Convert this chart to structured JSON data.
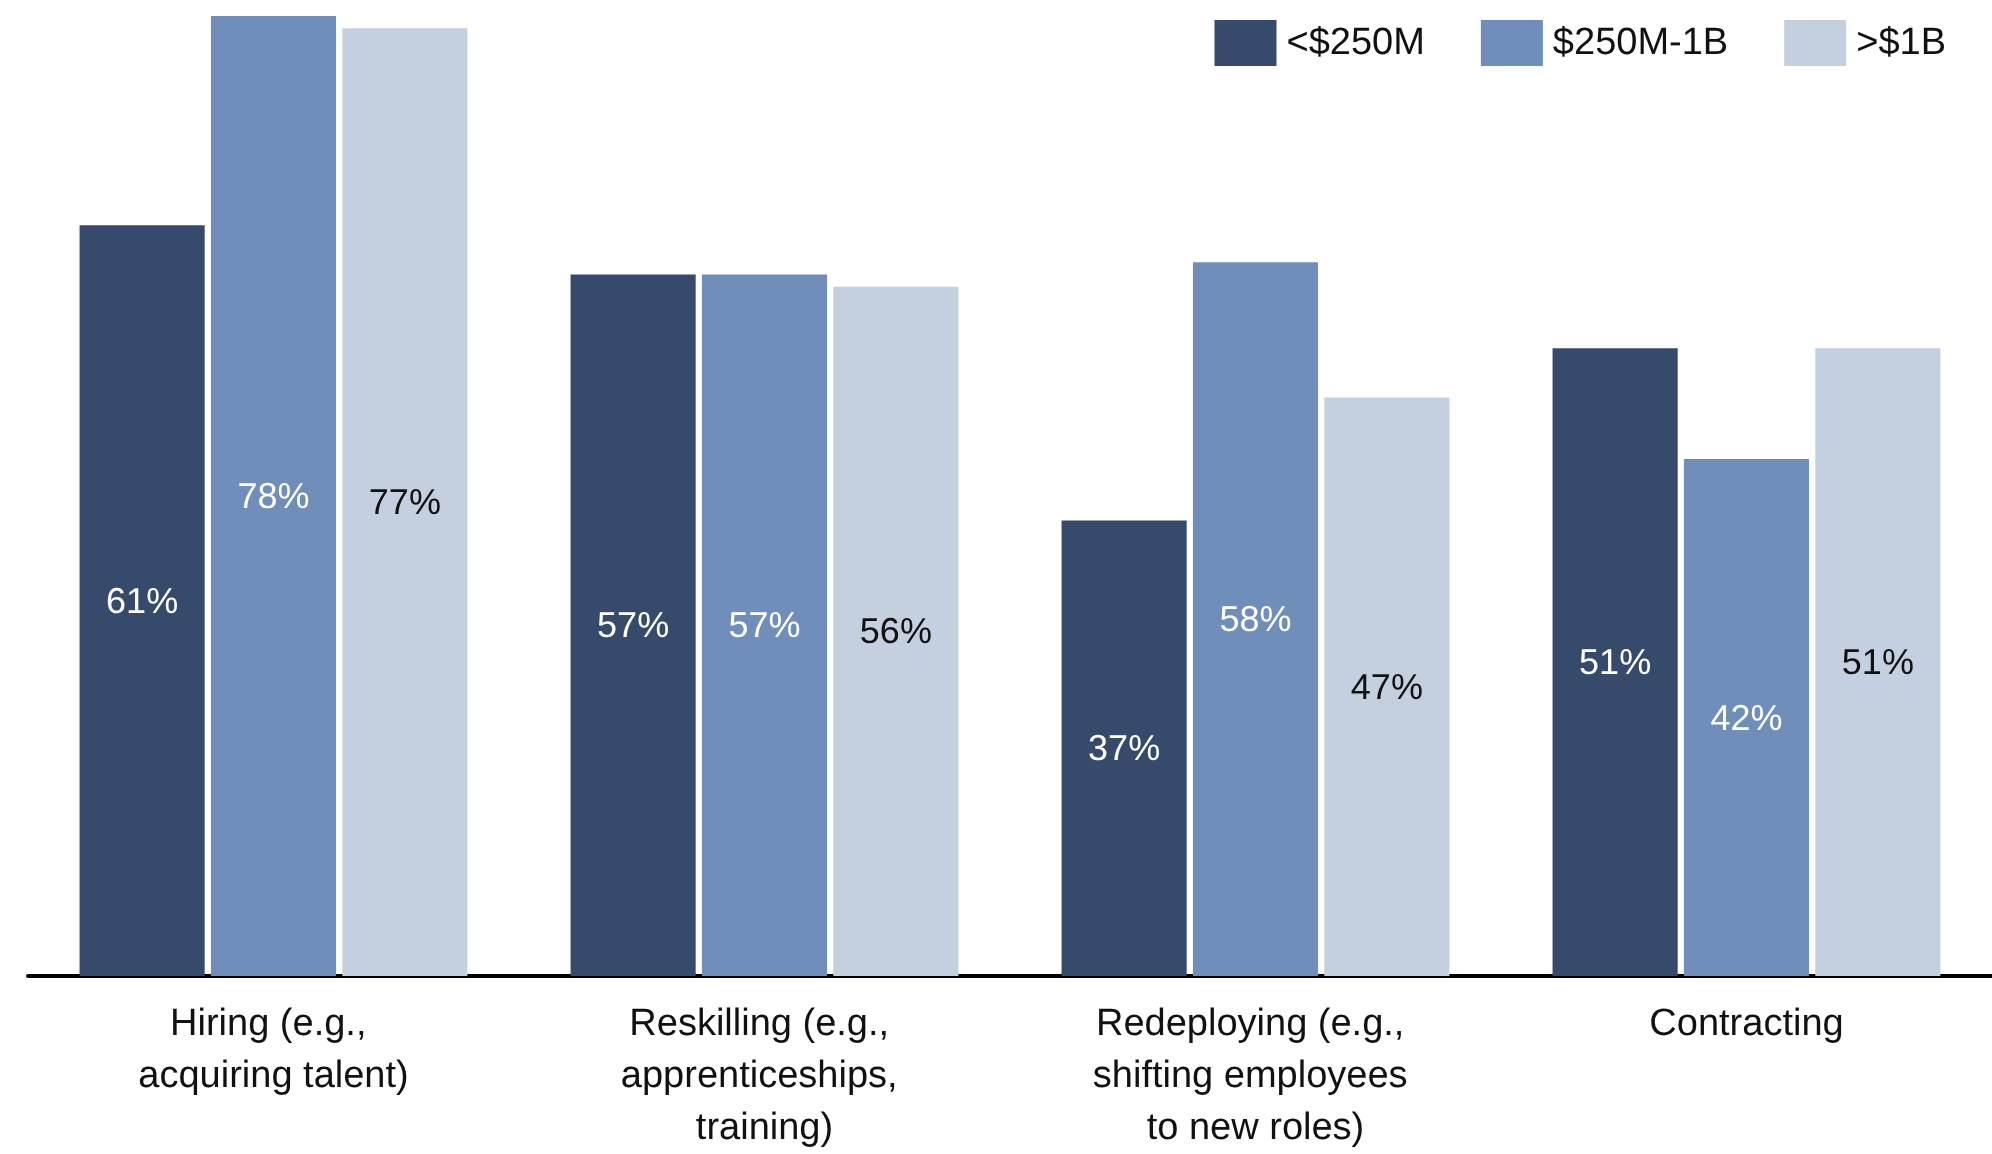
{
  "chart_data": {
    "type": "bar",
    "categories": [
      "Hiring (e.g., acquiring talent)",
      "Reskilling (e.g., apprenticeships, training)",
      "Redeploying (e.g., shifting employees to new roles)",
      "Contracting"
    ],
    "series": [
      {
        "name": "<$250M",
        "color": "#364b6c",
        "values": [
          61,
          57,
          37,
          51
        ],
        "value_labels": [
          "61%",
          "57%",
          "37%",
          "51%"
        ]
      },
      {
        "name": "$250M-1B",
        "color": "#6f8eb9",
        "values": [
          78,
          57,
          58,
          42
        ],
        "value_labels": [
          "78%",
          "57%",
          "58%",
          "42%"
        ]
      },
      {
        "name": ">$1B",
        "color": "#c4cfe0",
        "values": [
          77,
          56,
          47,
          51
        ],
        "value_labels": [
          "77%",
          "56%",
          "47%",
          "51%"
        ]
      }
    ],
    "legend": "top right"
  }
}
